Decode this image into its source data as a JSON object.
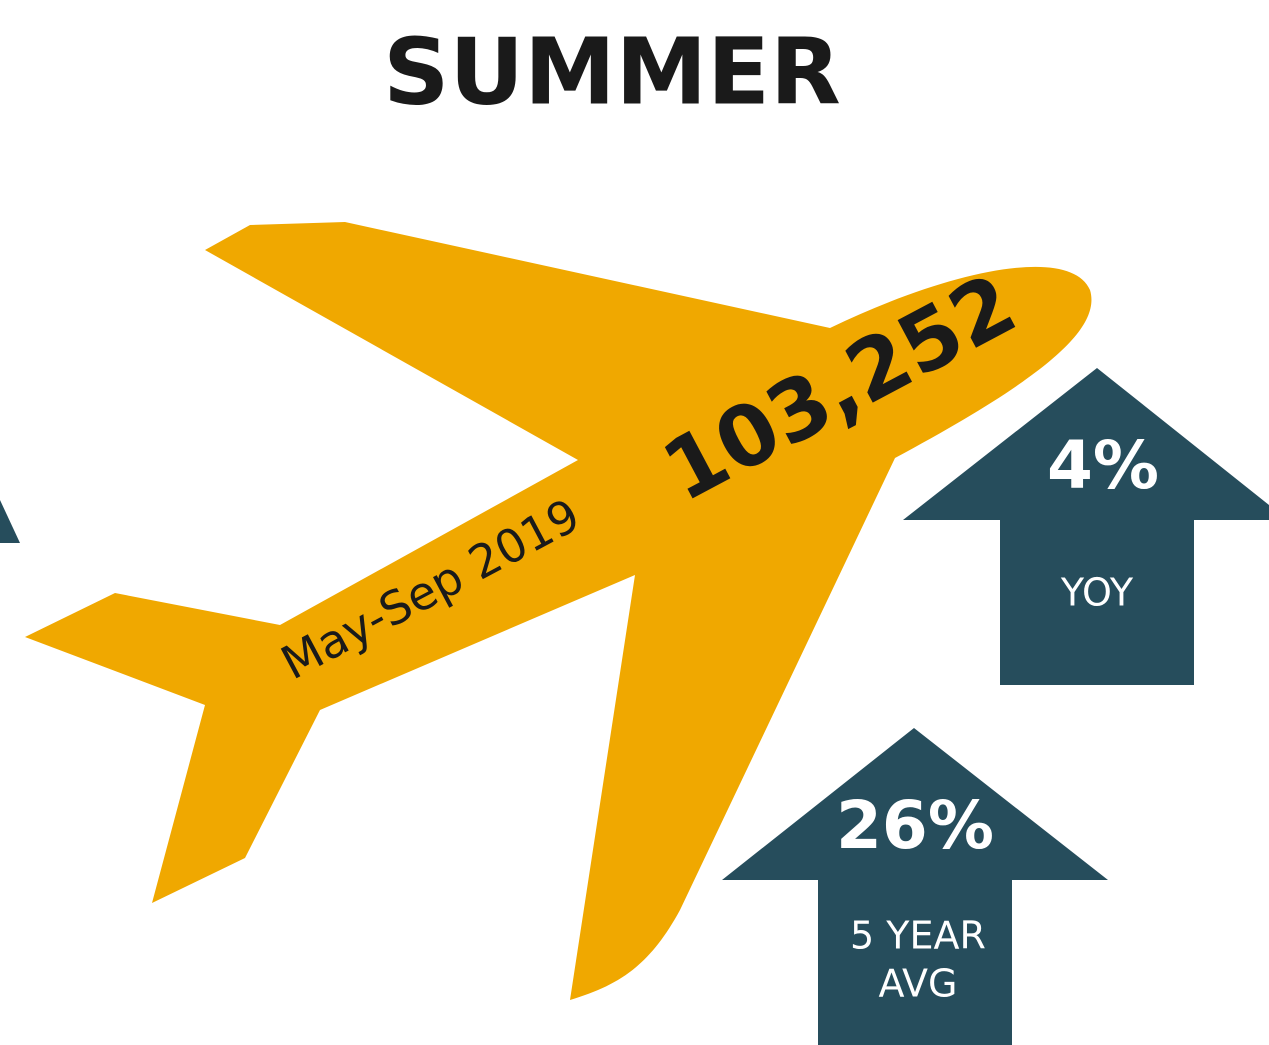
{
  "title": "SUMMER",
  "plane": {
    "period": "May-Sep 2019",
    "total": "103,252"
  },
  "stats": [
    {
      "value": "4%",
      "label": [
        "YOY"
      ]
    },
    {
      "value": "26%",
      "label": [
        "5 YEAR",
        "AVG"
      ]
    }
  ]
}
